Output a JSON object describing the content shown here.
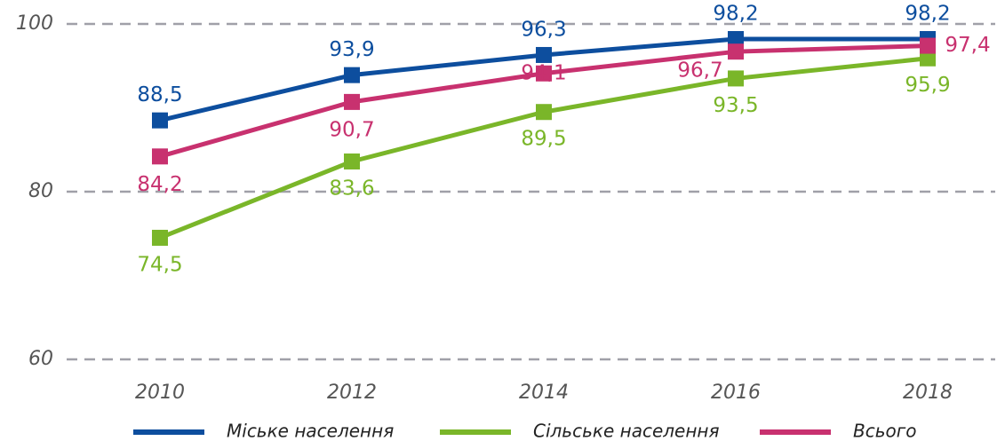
{
  "chart_data": {
    "type": "line",
    "categories": [
      "2010",
      "2012",
      "2014",
      "2016",
      "2018"
    ],
    "series": [
      {
        "name": "Міське населення",
        "color": "#0d4e9e",
        "values": [
          88.5,
          93.9,
          96.3,
          98.2,
          98.2
        ],
        "value_labels": [
          "88,5",
          "93,9",
          "96,3",
          "98,2",
          "98,2"
        ]
      },
      {
        "name": "Сільське населення",
        "color": "#7ab629",
        "values": [
          74.5,
          83.6,
          89.5,
          93.5,
          95.9
        ],
        "value_labels": [
          "74,5",
          "83,6",
          "89,5",
          "93,5",
          "95,9"
        ]
      },
      {
        "name": "Всього",
        "color": "#c8316f",
        "values": [
          84.2,
          90.7,
          94.1,
          96.7,
          97.4
        ],
        "value_labels": [
          "84,2",
          "90,7",
          "94,1",
          "96,7",
          "97,4"
        ]
      }
    ],
    "ylim": [
      60,
      100
    ],
    "yticks": [
      60,
      80,
      100
    ],
    "grid": true
  }
}
